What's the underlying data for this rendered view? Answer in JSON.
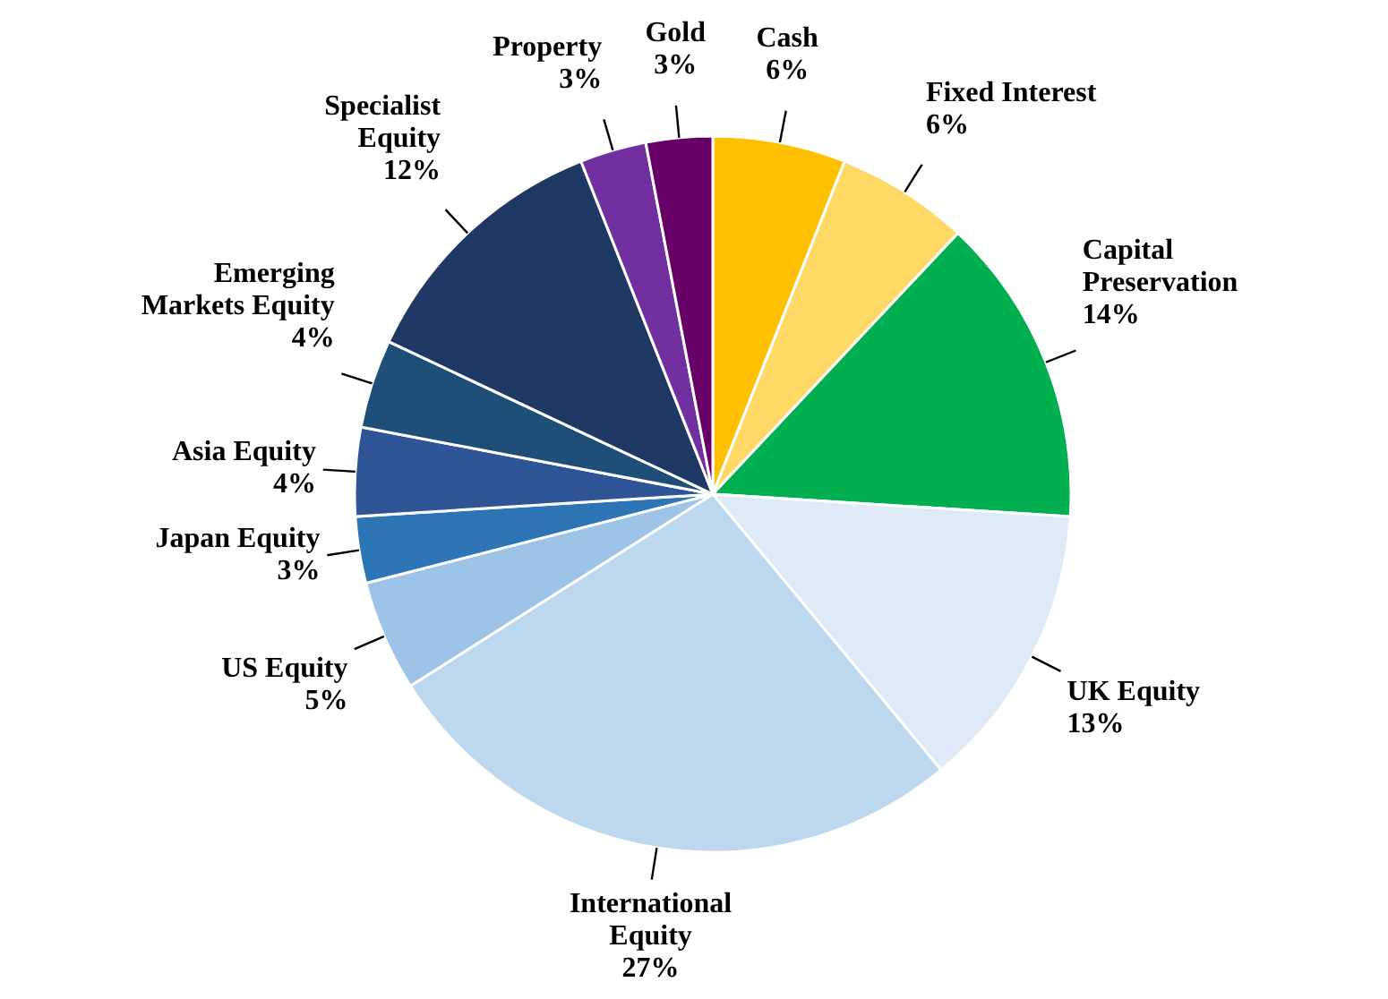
{
  "chart_data": {
    "type": "pie",
    "categories": [
      "Cash",
      "Fixed Interest",
      "Capital Preservation",
      "UK Equity",
      "International Equity",
      "US Equity",
      "Japan Equity",
      "Asia Equity",
      "Emerging Markets Equity",
      "Specialist Equity",
      "Property",
      "Gold"
    ],
    "values": [
      6,
      6,
      14,
      13,
      27,
      5,
      3,
      4,
      4,
      12,
      3,
      3
    ],
    "value_labels": [
      "6%",
      "6%",
      "14%",
      "13%",
      "27%",
      "5%",
      "3%",
      "4%",
      "4%",
      "12%",
      "3%",
      "3%"
    ],
    "colors": [
      "#ffc000",
      "#ffd966",
      "#00b050",
      "#deebf7",
      "#bdd7ee",
      "#9dc3e6",
      "#2e75b6",
      "#2f5597",
      "#1f4e79",
      "#203864",
      "#7030a0",
      "#660066"
    ]
  }
}
